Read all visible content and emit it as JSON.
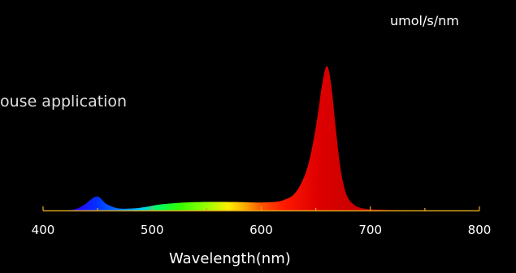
{
  "caption": "ouse application",
  "chart_data": {
    "type": "area",
    "title": "",
    "xlabel": "Wavelength(nm)",
    "ylabel": "umol/s/nm",
    "xlim": [
      400,
      800
    ],
    "ylim": [
      0,
      1.0
    ],
    "x_ticks": [
      {
        "value": 400,
        "label": "400"
      },
      {
        "value": 500,
        "label": "500"
      },
      {
        "value": 600,
        "label": "600"
      },
      {
        "value": 700,
        "label": "700"
      },
      {
        "value": 800,
        "label": "800"
      }
    ],
    "grid": false,
    "legend": "none",
    "fill": "spectrum-gradient",
    "axis_color": "#d7a21c",
    "series": [
      {
        "x": [
          400,
          420,
          430,
          438,
          443,
          447,
          450,
          453,
          457,
          462,
          468,
          475,
          485,
          495,
          505,
          515,
          525,
          535,
          545,
          555,
          565,
          575,
          585,
          595,
          605,
          615,
          622,
          630,
          637,
          643,
          648,
          652,
          655,
          658,
          660,
          662,
          665,
          668,
          672,
          676,
          680,
          685,
          690,
          700,
          720,
          750,
          800
        ],
        "y": [
          0,
          0,
          0.01,
          0.04,
          0.07,
          0.09,
          0.095,
          0.08,
          0.05,
          0.03,
          0.015,
          0.012,
          0.015,
          0.025,
          0.038,
          0.046,
          0.052,
          0.055,
          0.057,
          0.058,
          0.058,
          0.057,
          0.056,
          0.054,
          0.055,
          0.06,
          0.075,
          0.11,
          0.19,
          0.31,
          0.48,
          0.66,
          0.82,
          0.94,
          0.98,
          0.95,
          0.8,
          0.58,
          0.32,
          0.16,
          0.08,
          0.04,
          0.02,
          0.008,
          0.002,
          0,
          0
        ]
      }
    ]
  }
}
